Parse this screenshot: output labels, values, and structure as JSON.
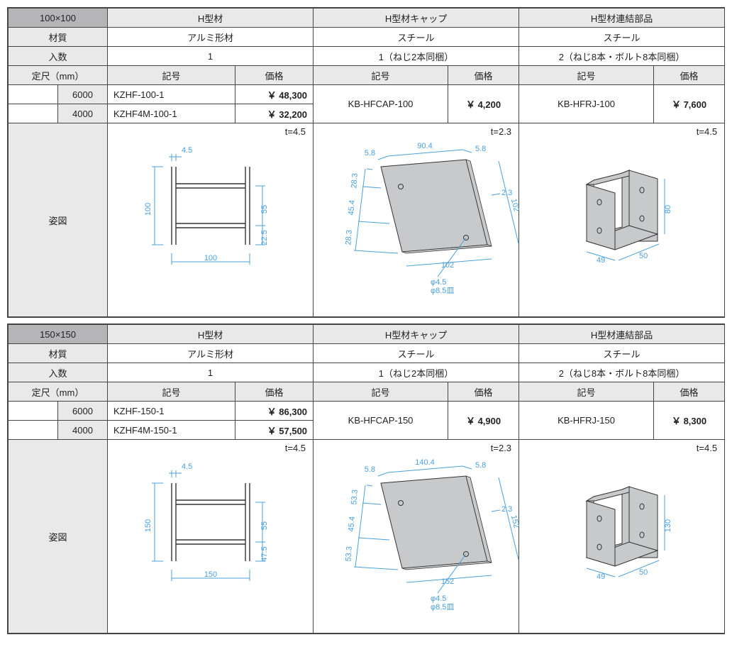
{
  "blocks": [
    {
      "size": "100×100",
      "cols": [
        "H型材",
        "H型材キャップ",
        "H型材連結部品"
      ],
      "material": [
        "アルミ形材",
        "スチール",
        "スチール"
      ],
      "qty": [
        "1",
        "1（ねじ2本同梱）",
        "2（ねじ8本・ボルト8本同梱）"
      ],
      "spec_label": "定尺（mm）",
      "sub_heads": [
        "記号",
        "価格"
      ],
      "hbeam_rows": [
        {
          "len": "6000",
          "code": "KZHF-100-1",
          "price": "￥ 48,300"
        },
        {
          "len": "4000",
          "code": "KZHF4M-100-1",
          "price": "￥ 32,200"
        }
      ],
      "cap": {
        "code": "KB-HFCAP-100",
        "price": "￥  4,200"
      },
      "joint": {
        "code": "KB-HFRJ-100",
        "price": "￥  7,600"
      },
      "fig_label": "姿図",
      "t": [
        "t=4.5",
        "t=2.3",
        "t=4.5"
      ],
      "dims": {
        "h": "100",
        "w": "100",
        "inner": "55",
        "flange": "4.5",
        "half": "22.5",
        "cap_w": "90.4",
        "cap_h": "102",
        "cap_edge": "5.8",
        "cap_t": "2.3",
        "cap_seg": "28.3",
        "cap_mid": "45.4",
        "cap_hole": "φ4.5",
        "cap_csink": "φ8.5皿",
        "joint_w": "49",
        "joint_d": "50",
        "joint_h": "80"
      }
    },
    {
      "size": "150×150",
      "cols": [
        "H型材",
        "H型材キャップ",
        "H型材連結部品"
      ],
      "material": [
        "アルミ形材",
        "スチール",
        "スチール"
      ],
      "qty": [
        "1",
        "1（ねじ2本同梱）",
        "2（ねじ8本・ボルト8本同梱）"
      ],
      "spec_label": "定尺（mm）",
      "sub_heads": [
        "記号",
        "価格"
      ],
      "hbeam_rows": [
        {
          "len": "6000",
          "code": "KZHF-150-1",
          "price": "￥ 86,300"
        },
        {
          "len": "4000",
          "code": "KZHF4M-150-1",
          "price": "￥ 57,500"
        }
      ],
      "cap": {
        "code": "KB-HFCAP-150",
        "price": "￥  4,900"
      },
      "joint": {
        "code": "KB-HFRJ-150",
        "price": "￥  8,300"
      },
      "fig_label": "姿図",
      "t": [
        "t=4.5",
        "t=2.3",
        "t=4.5"
      ],
      "dims": {
        "h": "150",
        "w": "150",
        "inner": "55",
        "flange": "4.5",
        "half": "47.5",
        "cap_w": "140.4",
        "cap_h": "152",
        "cap_edge": "5.8",
        "cap_t": "2.3",
        "cap_seg": "53.3",
        "cap_mid": "45.4",
        "cap_hole": "φ4.5",
        "cap_csink": "φ8.5皿",
        "joint_w": "49",
        "joint_d": "50",
        "joint_h": "130"
      }
    }
  ]
}
